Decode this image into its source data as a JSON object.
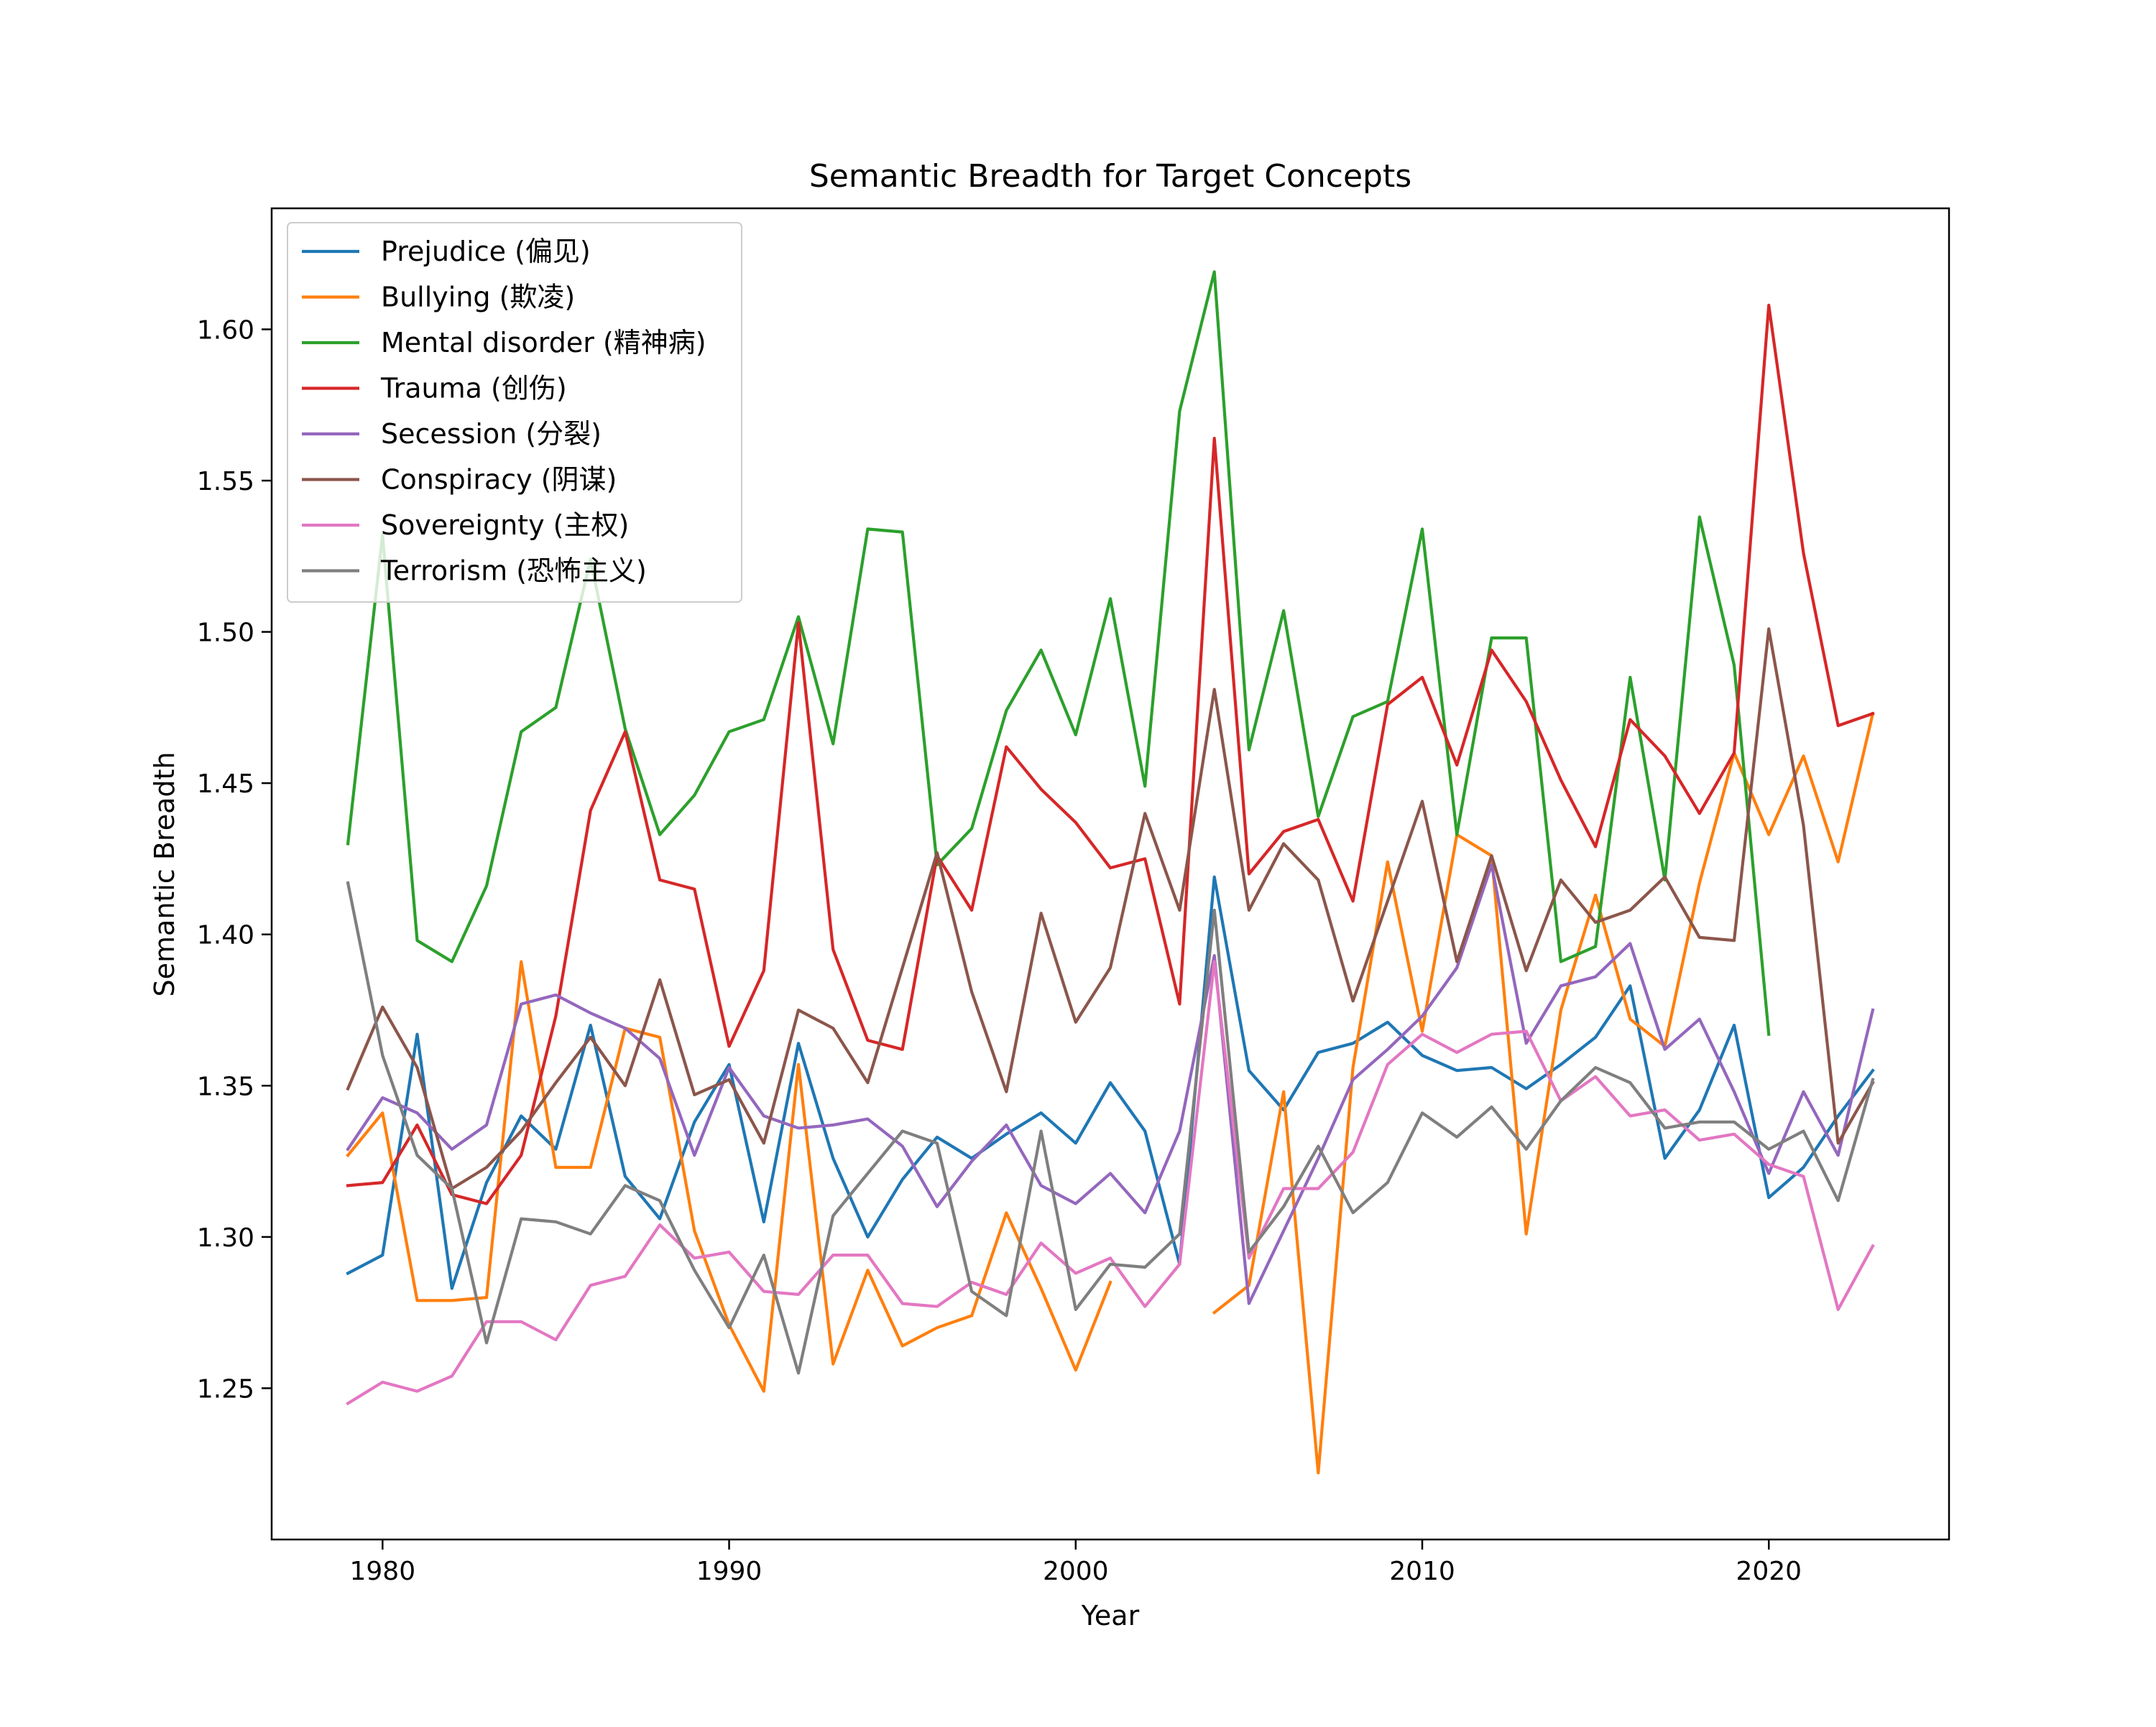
{
  "chart_data": {
    "type": "line",
    "title": "Semantic Breadth for Target Concepts",
    "xlabel": "Year",
    "ylabel": "Semantic Breadth",
    "xlim": [
      1976.8,
      2025.2
    ],
    "ylim": [
      1.2,
      1.64
    ],
    "x_ticks": [
      1980,
      1990,
      2000,
      2010,
      2020
    ],
    "y_ticks": [
      1.25,
      1.3,
      1.35,
      1.4,
      1.45,
      1.5,
      1.55,
      1.6
    ],
    "y_tick_labels": [
      "1.25",
      "1.30",
      "1.35",
      "1.40",
      "1.45",
      "1.50",
      "1.55",
      "1.60"
    ],
    "grid": false,
    "legend_position": "top-left",
    "x": [
      1979,
      1980,
      1981,
      1982,
      1983,
      1984,
      1985,
      1986,
      1987,
      1988,
      1989,
      1990,
      1991,
      1992,
      1993,
      1994,
      1995,
      1996,
      1997,
      1998,
      1999,
      2000,
      2001,
      2002,
      2003,
      2004,
      2005,
      2006,
      2007,
      2008,
      2009,
      2010,
      2011,
      2012,
      2013,
      2014,
      2015,
      2016,
      2017,
      2018,
      2019,
      2020,
      2021,
      2022,
      2023
    ],
    "series": [
      {
        "name": "Prejudice (偏见)",
        "color": "#1f77b4",
        "values": [
          1.288,
          1.294,
          1.367,
          1.283,
          1.318,
          1.34,
          1.329,
          1.37,
          1.32,
          1.306,
          1.338,
          1.357,
          1.305,
          1.364,
          1.326,
          1.3,
          1.319,
          1.333,
          1.326,
          1.334,
          1.341,
          1.331,
          1.351,
          1.335,
          1.291,
          1.419,
          1.355,
          1.342,
          1.361,
          1.364,
          1.371,
          1.36,
          1.355,
          1.356,
          1.349,
          1.357,
          1.366,
          1.383,
          1.326,
          1.342,
          1.37,
          1.313,
          1.323,
          1.34,
          1.355
        ]
      },
      {
        "name": "Bullying (欺凌)",
        "color": "#ff7f0e",
        "values": [
          1.327,
          1.341,
          1.279,
          1.279,
          1.28,
          1.391,
          1.323,
          1.323,
          1.369,
          1.366,
          1.302,
          1.271,
          1.249,
          1.357,
          1.258,
          1.289,
          1.264,
          1.27,
          1.274,
          1.308,
          1.283,
          1.256,
          1.285,
          null,
          null,
          1.275,
          1.284,
          1.348,
          1.222,
          1.356,
          1.424,
          1.368,
          1.433,
          1.426,
          1.301,
          1.375,
          1.413,
          1.372,
          1.363,
          1.417,
          1.46,
          1.433,
          1.459,
          1.424,
          1.473
        ]
      },
      {
        "name": "Mental disorder (精神病)",
        "color": "#2ca02c",
        "values": [
          1.43,
          1.532,
          1.398,
          1.391,
          1.416,
          1.467,
          1.475,
          1.524,
          1.468,
          1.433,
          1.446,
          1.467,
          1.471,
          1.505,
          1.463,
          1.534,
          1.533,
          1.423,
          1.435,
          1.474,
          1.494,
          1.466,
          1.511,
          1.449,
          1.573,
          1.619,
          1.461,
          1.507,
          1.439,
          1.472,
          1.477,
          1.534,
          1.433,
          1.498,
          1.498,
          1.391,
          1.396,
          1.485,
          1.418,
          1.538,
          1.489,
          1.367,
          null,
          null,
          null
        ]
      },
      {
        "name": "Trauma (创伤)",
        "color": "#d62728",
        "values": [
          1.317,
          1.318,
          1.337,
          1.314,
          1.311,
          1.327,
          1.373,
          1.441,
          1.467,
          1.418,
          1.415,
          1.363,
          1.388,
          1.503,
          1.395,
          1.365,
          1.362,
          1.426,
          1.408,
          1.462,
          1.448,
          1.437,
          1.422,
          1.425,
          1.377,
          1.564,
          1.42,
          1.434,
          1.438,
          1.411,
          1.476,
          1.485,
          1.456,
          1.494,
          1.477,
          1.451,
          1.429,
          1.471,
          1.459,
          1.44,
          1.46,
          1.608,
          1.526,
          1.469,
          1.473
        ]
      },
      {
        "name": "Secession (分裂)",
        "color": "#9467bd",
        "values": [
          1.329,
          1.346,
          1.341,
          1.329,
          1.337,
          1.377,
          1.38,
          1.374,
          1.369,
          1.359,
          1.327,
          1.356,
          1.34,
          1.336,
          1.337,
          1.339,
          1.33,
          1.31,
          1.325,
          1.337,
          1.317,
          1.311,
          1.321,
          1.308,
          1.335,
          1.393,
          1.278,
          1.302,
          1.326,
          1.352,
          1.362,
          1.373,
          1.389,
          1.423,
          1.364,
          1.383,
          1.386,
          1.397,
          1.362,
          1.372,
          1.348,
          1.321,
          1.348,
          1.327,
          1.375
        ]
      },
      {
        "name": "Conspiracy (阴谋)",
        "color": "#8c564b",
        "values": [
          1.349,
          1.376,
          1.356,
          1.316,
          1.323,
          1.335,
          1.351,
          1.366,
          1.35,
          1.385,
          1.347,
          1.352,
          1.331,
          1.375,
          1.369,
          1.351,
          1.389,
          1.427,
          1.381,
          1.348,
          1.407,
          1.371,
          1.389,
          1.44,
          1.408,
          1.481,
          1.408,
          1.43,
          1.418,
          1.378,
          1.411,
          1.444,
          1.391,
          1.426,
          1.388,
          1.418,
          1.404,
          1.408,
          1.419,
          1.399,
          1.398,
          1.501,
          1.436,
          1.331,
          1.351
        ]
      },
      {
        "name": "Sovereignty (主权)",
        "color": "#e377c2",
        "values": [
          1.245,
          1.252,
          1.249,
          1.254,
          1.272,
          1.272,
          1.266,
          1.284,
          1.287,
          1.304,
          1.293,
          1.295,
          1.282,
          1.281,
          1.294,
          1.294,
          1.278,
          1.277,
          1.285,
          1.281,
          1.298,
          1.288,
          1.293,
          1.277,
          1.291,
          1.391,
          1.293,
          1.316,
          1.316,
          1.328,
          1.357,
          1.367,
          1.361,
          1.367,
          1.368,
          1.345,
          1.353,
          1.34,
          1.342,
          1.332,
          1.334,
          1.324,
          1.32,
          1.276,
          1.297
        ]
      },
      {
        "name": "Terrorism (恐怖主义)",
        "color": "#7f7f7f",
        "values": [
          1.417,
          1.36,
          1.327,
          1.316,
          1.265,
          1.306,
          1.305,
          1.301,
          1.317,
          1.312,
          1.289,
          1.27,
          1.294,
          1.255,
          1.307,
          1.321,
          1.335,
          1.331,
          1.282,
          1.274,
          1.335,
          1.276,
          1.291,
          1.29,
          1.301,
          1.408,
          1.295,
          1.31,
          1.33,
          1.308,
          1.318,
          1.341,
          1.333,
          1.343,
          1.329,
          1.345,
          1.356,
          1.351,
          1.336,
          1.338,
          1.338,
          1.329,
          1.335,
          1.312,
          1.352
        ]
      }
    ]
  }
}
